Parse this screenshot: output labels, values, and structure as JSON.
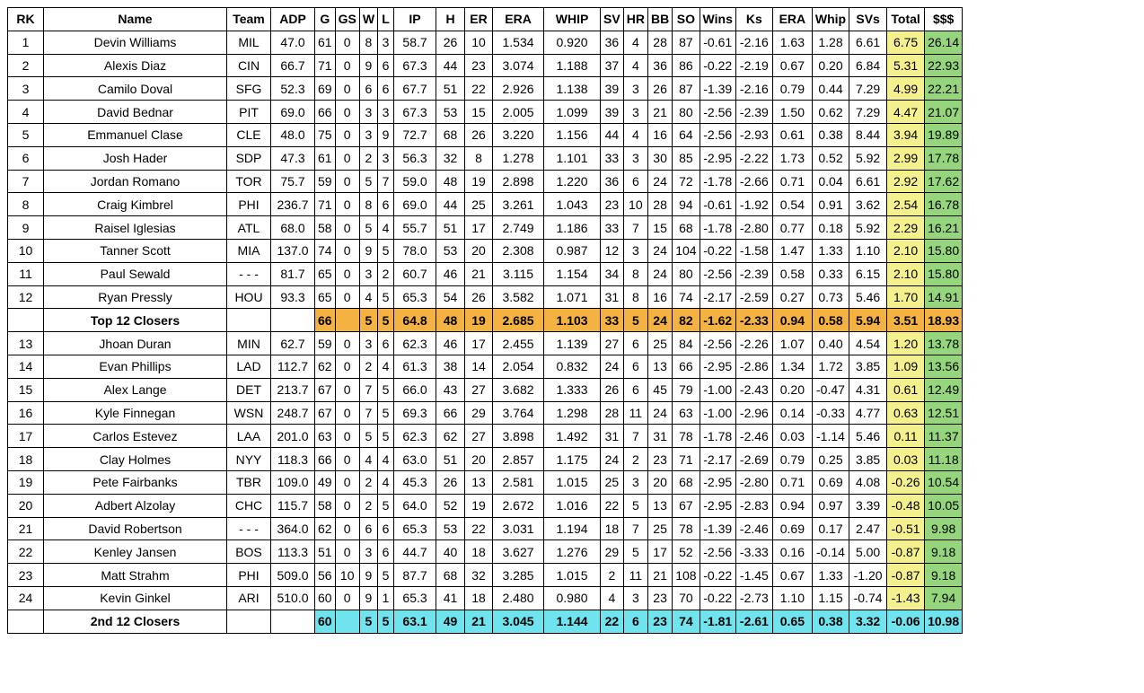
{
  "table": {
    "header": [
      "RK",
      "Name",
      "Team",
      "ADP",
      "G",
      "GS",
      "W",
      "L",
      "IP",
      "H",
      "ER",
      "ERA",
      "WHIP",
      "SV",
      "HR",
      "BB",
      "SO",
      "Wins",
      "Ks",
      "ERA",
      "Whip",
      "SVs",
      "Total",
      "$$$"
    ],
    "rows": [
      [
        "1",
        "Devin Williams",
        "MIL",
        "47.0",
        "61",
        "0",
        "8",
        "3",
        "58.7",
        "26",
        "10",
        "1.534",
        "0.920",
        "36",
        "4",
        "28",
        "87",
        "-0.61",
        "-2.16",
        "1.63",
        "1.28",
        "6.61",
        "6.75",
        "26.14"
      ],
      [
        "2",
        "Alexis Diaz",
        "CIN",
        "66.7",
        "71",
        "0",
        "9",
        "6",
        "67.3",
        "44",
        "23",
        "3.074",
        "1.188",
        "37",
        "4",
        "36",
        "86",
        "-0.22",
        "-2.19",
        "0.67",
        "0.20",
        "6.84",
        "5.31",
        "22.93"
      ],
      [
        "3",
        "Camilo Doval",
        "SFG",
        "52.3",
        "69",
        "0",
        "6",
        "6",
        "67.7",
        "51",
        "22",
        "2.926",
        "1.138",
        "39",
        "3",
        "26",
        "87",
        "-1.39",
        "-2.16",
        "0.79",
        "0.44",
        "7.29",
        "4.99",
        "22.21"
      ],
      [
        "4",
        "David Bednar",
        "PIT",
        "69.0",
        "66",
        "0",
        "3",
        "3",
        "67.3",
        "53",
        "15",
        "2.005",
        "1.099",
        "39",
        "3",
        "21",
        "80",
        "-2.56",
        "-2.39",
        "1.50",
        "0.62",
        "7.29",
        "4.47",
        "21.07"
      ],
      [
        "5",
        "Emmanuel Clase",
        "CLE",
        "48.0",
        "75",
        "0",
        "3",
        "9",
        "72.7",
        "68",
        "26",
        "3.220",
        "1.156",
        "44",
        "4",
        "16",
        "64",
        "-2.56",
        "-2.93",
        "0.61",
        "0.38",
        "8.44",
        "3.94",
        "19.89"
      ],
      [
        "6",
        "Josh Hader",
        "SDP",
        "47.3",
        "61",
        "0",
        "2",
        "3",
        "56.3",
        "32",
        "8",
        "1.278",
        "1.101",
        "33",
        "3",
        "30",
        "85",
        "-2.95",
        "-2.22",
        "1.73",
        "0.52",
        "5.92",
        "2.99",
        "17.78"
      ],
      [
        "7",
        "Jordan Romano",
        "TOR",
        "75.7",
        "59",
        "0",
        "5",
        "7",
        "59.0",
        "48",
        "19",
        "2.898",
        "1.220",
        "36",
        "6",
        "24",
        "72",
        "-1.78",
        "-2.66",
        "0.71",
        "0.04",
        "6.61",
        "2.92",
        "17.62"
      ],
      [
        "8",
        "Craig Kimbrel",
        "PHI",
        "236.7",
        "71",
        "0",
        "8",
        "6",
        "69.0",
        "44",
        "25",
        "3.261",
        "1.043",
        "23",
        "10",
        "28",
        "94",
        "-0.61",
        "-1.92",
        "0.54",
        "0.91",
        "3.62",
        "2.54",
        "16.78"
      ],
      [
        "9",
        "Raisel Iglesias",
        "ATL",
        "68.0",
        "58",
        "0",
        "5",
        "4",
        "55.7",
        "51",
        "17",
        "2.749",
        "1.186",
        "33",
        "7",
        "15",
        "68",
        "-1.78",
        "-2.80",
        "0.77",
        "0.18",
        "5.92",
        "2.29",
        "16.21"
      ],
      [
        "10",
        "Tanner Scott",
        "MIA",
        "137.0",
        "74",
        "0",
        "9",
        "5",
        "78.0",
        "53",
        "20",
        "2.308",
        "0.987",
        "12",
        "3",
        "24",
        "104",
        "-0.22",
        "-1.58",
        "1.47",
        "1.33",
        "1.10",
        "2.10",
        "15.80"
      ],
      [
        "11",
        "Paul Sewald",
        "- - -",
        "81.7",
        "65",
        "0",
        "3",
        "2",
        "60.7",
        "46",
        "21",
        "3.115",
        "1.154",
        "34",
        "8",
        "24",
        "80",
        "-2.56",
        "-2.39",
        "0.58",
        "0.33",
        "6.15",
        "2.10",
        "15.80"
      ],
      [
        "12",
        "Ryan Pressly",
        "HOU",
        "93.3",
        "65",
        "0",
        "4",
        "5",
        "65.3",
        "54",
        "26",
        "3.582",
        "1.071",
        "31",
        "8",
        "16",
        "74",
        "-2.17",
        "-2.59",
        "0.27",
        "0.73",
        "5.46",
        "1.70",
        "14.91"
      ],
      [
        null,
        "Top 12 Closers",
        null,
        null,
        "66",
        null,
        "5",
        "5",
        "64.8",
        "48",
        "19",
        "2.685",
        "1.103",
        "33",
        "5",
        "24",
        "82",
        "-1.62",
        "-2.33",
        "0.94",
        "0.58",
        "5.94",
        "3.51",
        "18.93"
      ],
      [
        "13",
        "Jhoan Duran",
        "MIN",
        "62.7",
        "59",
        "0",
        "3",
        "6",
        "62.3",
        "46",
        "17",
        "2.455",
        "1.139",
        "27",
        "6",
        "25",
        "84",
        "-2.56",
        "-2.26",
        "1.07",
        "0.40",
        "4.54",
        "1.20",
        "13.78"
      ],
      [
        "14",
        "Evan Phillips",
        "LAD",
        "112.7",
        "62",
        "0",
        "2",
        "4",
        "61.3",
        "38",
        "14",
        "2.054",
        "0.832",
        "24",
        "6",
        "13",
        "66",
        "-2.95",
        "-2.86",
        "1.34",
        "1.72",
        "3.85",
        "1.09",
        "13.56"
      ],
      [
        "15",
        "Alex Lange",
        "DET",
        "213.7",
        "67",
        "0",
        "7",
        "5",
        "66.0",
        "43",
        "27",
        "3.682",
        "1.333",
        "26",
        "6",
        "45",
        "79",
        "-1.00",
        "-2.43",
        "0.20",
        "-0.47",
        "4.31",
        "0.61",
        "12.49"
      ],
      [
        "16",
        "Kyle Finnegan",
        "WSN",
        "248.7",
        "67",
        "0",
        "7",
        "5",
        "69.3",
        "66",
        "29",
        "3.764",
        "1.298",
        "28",
        "11",
        "24",
        "63",
        "-1.00",
        "-2.96",
        "0.14",
        "-0.33",
        "4.77",
        "0.63",
        "12.51"
      ],
      [
        "17",
        "Carlos Estevez",
        "LAA",
        "201.0",
        "63",
        "0",
        "5",
        "5",
        "62.3",
        "62",
        "27",
        "3.898",
        "1.492",
        "31",
        "7",
        "31",
        "78",
        "-1.78",
        "-2.46",
        "0.03",
        "-1.14",
        "5.46",
        "0.11",
        "11.37"
      ],
      [
        "18",
        "Clay Holmes",
        "NYY",
        "118.3",
        "66",
        "0",
        "4",
        "4",
        "63.0",
        "51",
        "20",
        "2.857",
        "1.175",
        "24",
        "2",
        "23",
        "71",
        "-2.17",
        "-2.69",
        "0.79",
        "0.25",
        "3.85",
        "0.03",
        "11.18"
      ],
      [
        "19",
        "Pete Fairbanks",
        "TBR",
        "109.0",
        "49",
        "0",
        "2",
        "4",
        "45.3",
        "26",
        "13",
        "2.581",
        "1.015",
        "25",
        "3",
        "20",
        "68",
        "-2.95",
        "-2.80",
        "0.71",
        "0.69",
        "4.08",
        "-0.26",
        "10.54"
      ],
      [
        "20",
        "Adbert Alzolay",
        "CHC",
        "115.7",
        "58",
        "0",
        "2",
        "5",
        "64.0",
        "52",
        "19",
        "2.672",
        "1.016",
        "22",
        "5",
        "13",
        "67",
        "-2.95",
        "-2.83",
        "0.94",
        "0.97",
        "3.39",
        "-0.48",
        "10.05"
      ],
      [
        "21",
        "David Robertson",
        "- - -",
        "364.0",
        "62",
        "0",
        "6",
        "6",
        "65.3",
        "53",
        "22",
        "3.031",
        "1.194",
        "18",
        "7",
        "25",
        "78",
        "-1.39",
        "-2.46",
        "0.69",
        "0.17",
        "2.47",
        "-0.51",
        "9.98"
      ],
      [
        "22",
        "Kenley Jansen",
        "BOS",
        "113.3",
        "51",
        "0",
        "3",
        "6",
        "44.7",
        "40",
        "18",
        "3.627",
        "1.276",
        "29",
        "5",
        "17",
        "52",
        "-2.56",
        "-3.33",
        "0.16",
        "-0.14",
        "5.00",
        "-0.87",
        "9.18"
      ],
      [
        "23",
        "Matt Strahm",
        "PHI",
        "509.0",
        "56",
        "10",
        "9",
        "5",
        "87.7",
        "68",
        "32",
        "3.285",
        "1.015",
        "2",
        "11",
        "21",
        "108",
        "-0.22",
        "-1.45",
        "0.67",
        "1.33",
        "-1.20",
        "-0.87",
        "9.18"
      ],
      [
        "24",
        "Kevin Ginkel",
        "ARI",
        "510.0",
        "60",
        "0",
        "9",
        "1",
        "65.3",
        "41",
        "18",
        "2.480",
        "0.980",
        "4",
        "3",
        "23",
        "70",
        "-0.22",
        "-2.73",
        "1.10",
        "1.15",
        "-0.74",
        "-1.43",
        "7.94"
      ],
      [
        null,
        "2nd 12 Closers",
        null,
        null,
        "60",
        null,
        "5",
        "5",
        "63.1",
        "49",
        "21",
        "3.045",
        "1.144",
        "22",
        "6",
        "23",
        "74",
        "-1.81",
        "-2.61",
        "0.65",
        "0.38",
        "3.32",
        "-0.06",
        "10.98"
      ]
    ]
  }
}
